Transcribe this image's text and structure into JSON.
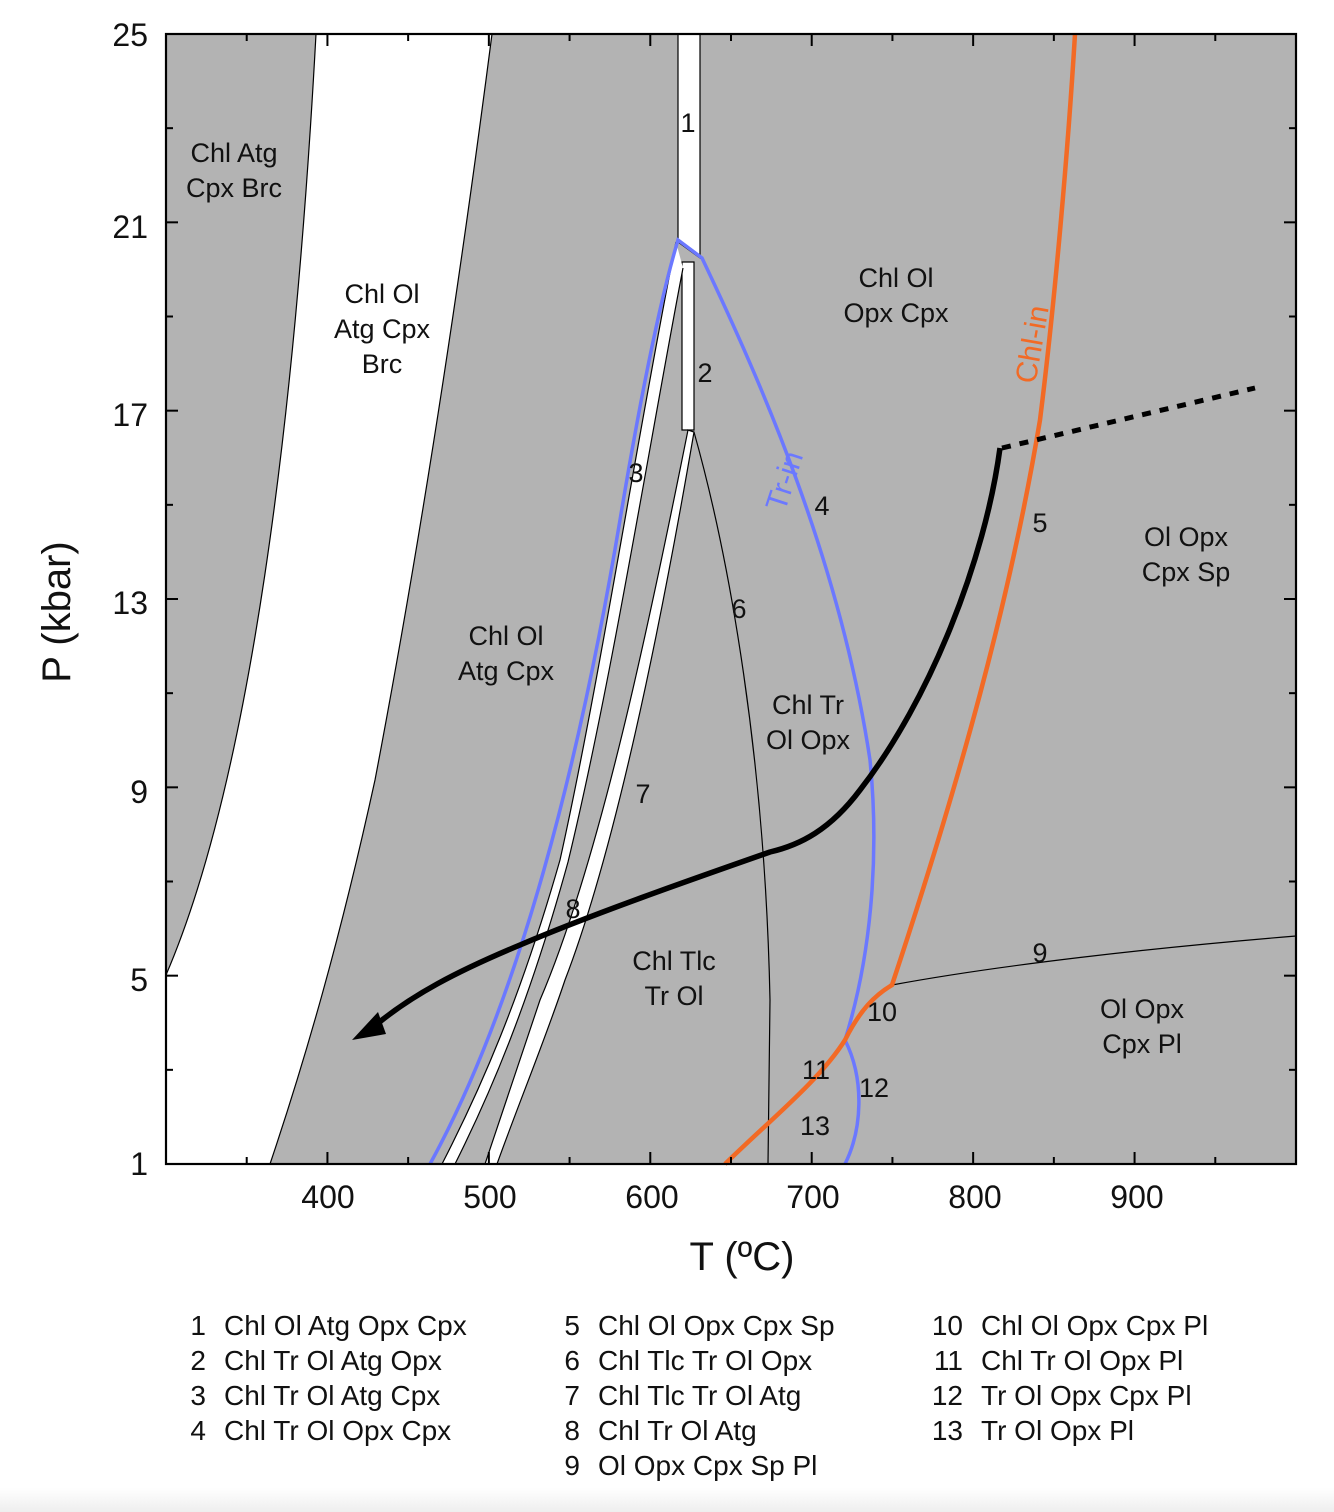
{
  "axes": {
    "xlabel": "T (ºC)",
    "ylabel": "P (kbar)",
    "x_range": [
      300,
      1000
    ],
    "y_range": [
      1,
      25
    ],
    "x_ticks": [
      "400",
      "500",
      "600",
      "700",
      "800",
      "900"
    ],
    "y_ticks": [
      "1",
      "5",
      "9",
      "13",
      "17",
      "21",
      "25"
    ]
  },
  "fields": [
    "Chl Atg\nCpx Brc",
    "Chl Ol\nAtg Cpx\nBrc",
    "Chl Ol\nAtg Cpx",
    "Chl Ol\nOpx Cpx",
    "Chl Tr\nOl Opx",
    "Chl Tlc\nTr Ol",
    "Ol Opx\nCpx Sp",
    "Ol Opx\nCpx Pl"
  ],
  "field_numbers": [
    "1",
    "2",
    "3",
    "4",
    "5",
    "6",
    "7",
    "8",
    "9",
    "10",
    "11",
    "12",
    "13"
  ],
  "curves": {
    "tr_in": "Tr-in",
    "chl_in": "Chl-in"
  },
  "legend": [
    {
      "num": "1",
      "text": "Chl Ol Atg Opx Cpx"
    },
    {
      "num": "2",
      "text": "Chl Tr Ol Atg Opx"
    },
    {
      "num": "3",
      "text": "Chl Tr Ol Atg Cpx"
    },
    {
      "num": "4",
      "text": "Chl Tr Ol Opx Cpx"
    },
    {
      "num": "5",
      "text": "Chl Ol Opx Cpx Sp"
    },
    {
      "num": "6",
      "text": "Chl Tlc Tr Ol Opx"
    },
    {
      "num": "7",
      "text": "Chl Tlc Tr Ol Atg"
    },
    {
      "num": "8",
      "text": "Chl Tr Ol Atg"
    },
    {
      "num": "9",
      "text": "Ol Opx Cpx Sp Pl"
    },
    {
      "num": "10",
      "text": "Chl Ol Opx Cpx Pl"
    },
    {
      "num": "11",
      "text": "Chl Tr Ol Opx Pl"
    },
    {
      "num": "12",
      "text": "Tr Ol Opx Cpx Pl"
    },
    {
      "num": "13",
      "text": "Tr Ol Opx Pl"
    }
  ],
  "colors": {
    "field_fill": "#b3b3b3",
    "tr_in": "#6b78ff",
    "chl_in": "#f26a25",
    "pt_path": "#000000"
  }
}
